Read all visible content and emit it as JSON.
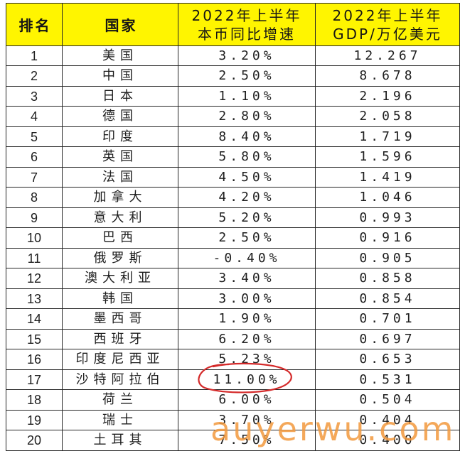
{
  "colors": {
    "header_bg": "#FFF500",
    "grid": "#262626",
    "annotation": "#D42A2A",
    "watermark": "#F39A3E"
  },
  "chart_data": {
    "type": "table",
    "header": {
      "rank": "排名",
      "country": "国家",
      "growth": [
        "2022年上半年",
        "本币同比增速"
      ],
      "gdp": [
        "2022年上半年",
        "GDP/万亿美元"
      ]
    },
    "rows": [
      {
        "rank": "1",
        "country": "美国",
        "growth": "3.20%",
        "gdp": "12.267"
      },
      {
        "rank": "2",
        "country": "中国",
        "growth": "2.50%",
        "gdp": "8.678"
      },
      {
        "rank": "3",
        "country": "日本",
        "growth": "1.10%",
        "gdp": "2.196"
      },
      {
        "rank": "4",
        "country": "德国",
        "growth": "2.80%",
        "gdp": "2.058"
      },
      {
        "rank": "5",
        "country": "印度",
        "growth": "8.40%",
        "gdp": "1.719"
      },
      {
        "rank": "6",
        "country": "英国",
        "growth": "5.80%",
        "gdp": "1.596"
      },
      {
        "rank": "7",
        "country": "法国",
        "growth": "4.50%",
        "gdp": "1.419"
      },
      {
        "rank": "8",
        "country": "加拿大",
        "growth": "4.20%",
        "gdp": "1.046"
      },
      {
        "rank": "9",
        "country": "意大利",
        "growth": "5.20%",
        "gdp": "0.993"
      },
      {
        "rank": "10",
        "country": "巴西",
        "growth": "2.50%",
        "gdp": "0.916"
      },
      {
        "rank": "11",
        "country": "俄罗斯",
        "growth": "-0.40%",
        "gdp": "0.905"
      },
      {
        "rank": "12",
        "country": "澳大利亚",
        "growth": "3.40%",
        "gdp": "0.858"
      },
      {
        "rank": "13",
        "country": "韩国",
        "growth": "3.00%",
        "gdp": "0.854"
      },
      {
        "rank": "14",
        "country": "墨西哥",
        "growth": "1.90%",
        "gdp": "0.701"
      },
      {
        "rank": "15",
        "country": "西班牙",
        "growth": "6.20%",
        "gdp": "0.697"
      },
      {
        "rank": "16",
        "country": "印度尼西亚",
        "growth": "5.23%",
        "gdp": "0.653"
      },
      {
        "rank": "17",
        "country": "沙特阿拉伯",
        "growth": "11.00%",
        "gdp": "0.531",
        "growth_highlighted": true
      },
      {
        "rank": "18",
        "country": "荷兰",
        "growth": "6.00%",
        "gdp": "0.504"
      },
      {
        "rank": "19",
        "country": "瑞士",
        "growth": "3.70%",
        "gdp": "0.404"
      },
      {
        "rank": "20",
        "country": "土耳其",
        "growth": "7.50%",
        "gdp": "0.400"
      }
    ]
  },
  "watermark": {
    "text": "auyerwu.com"
  }
}
